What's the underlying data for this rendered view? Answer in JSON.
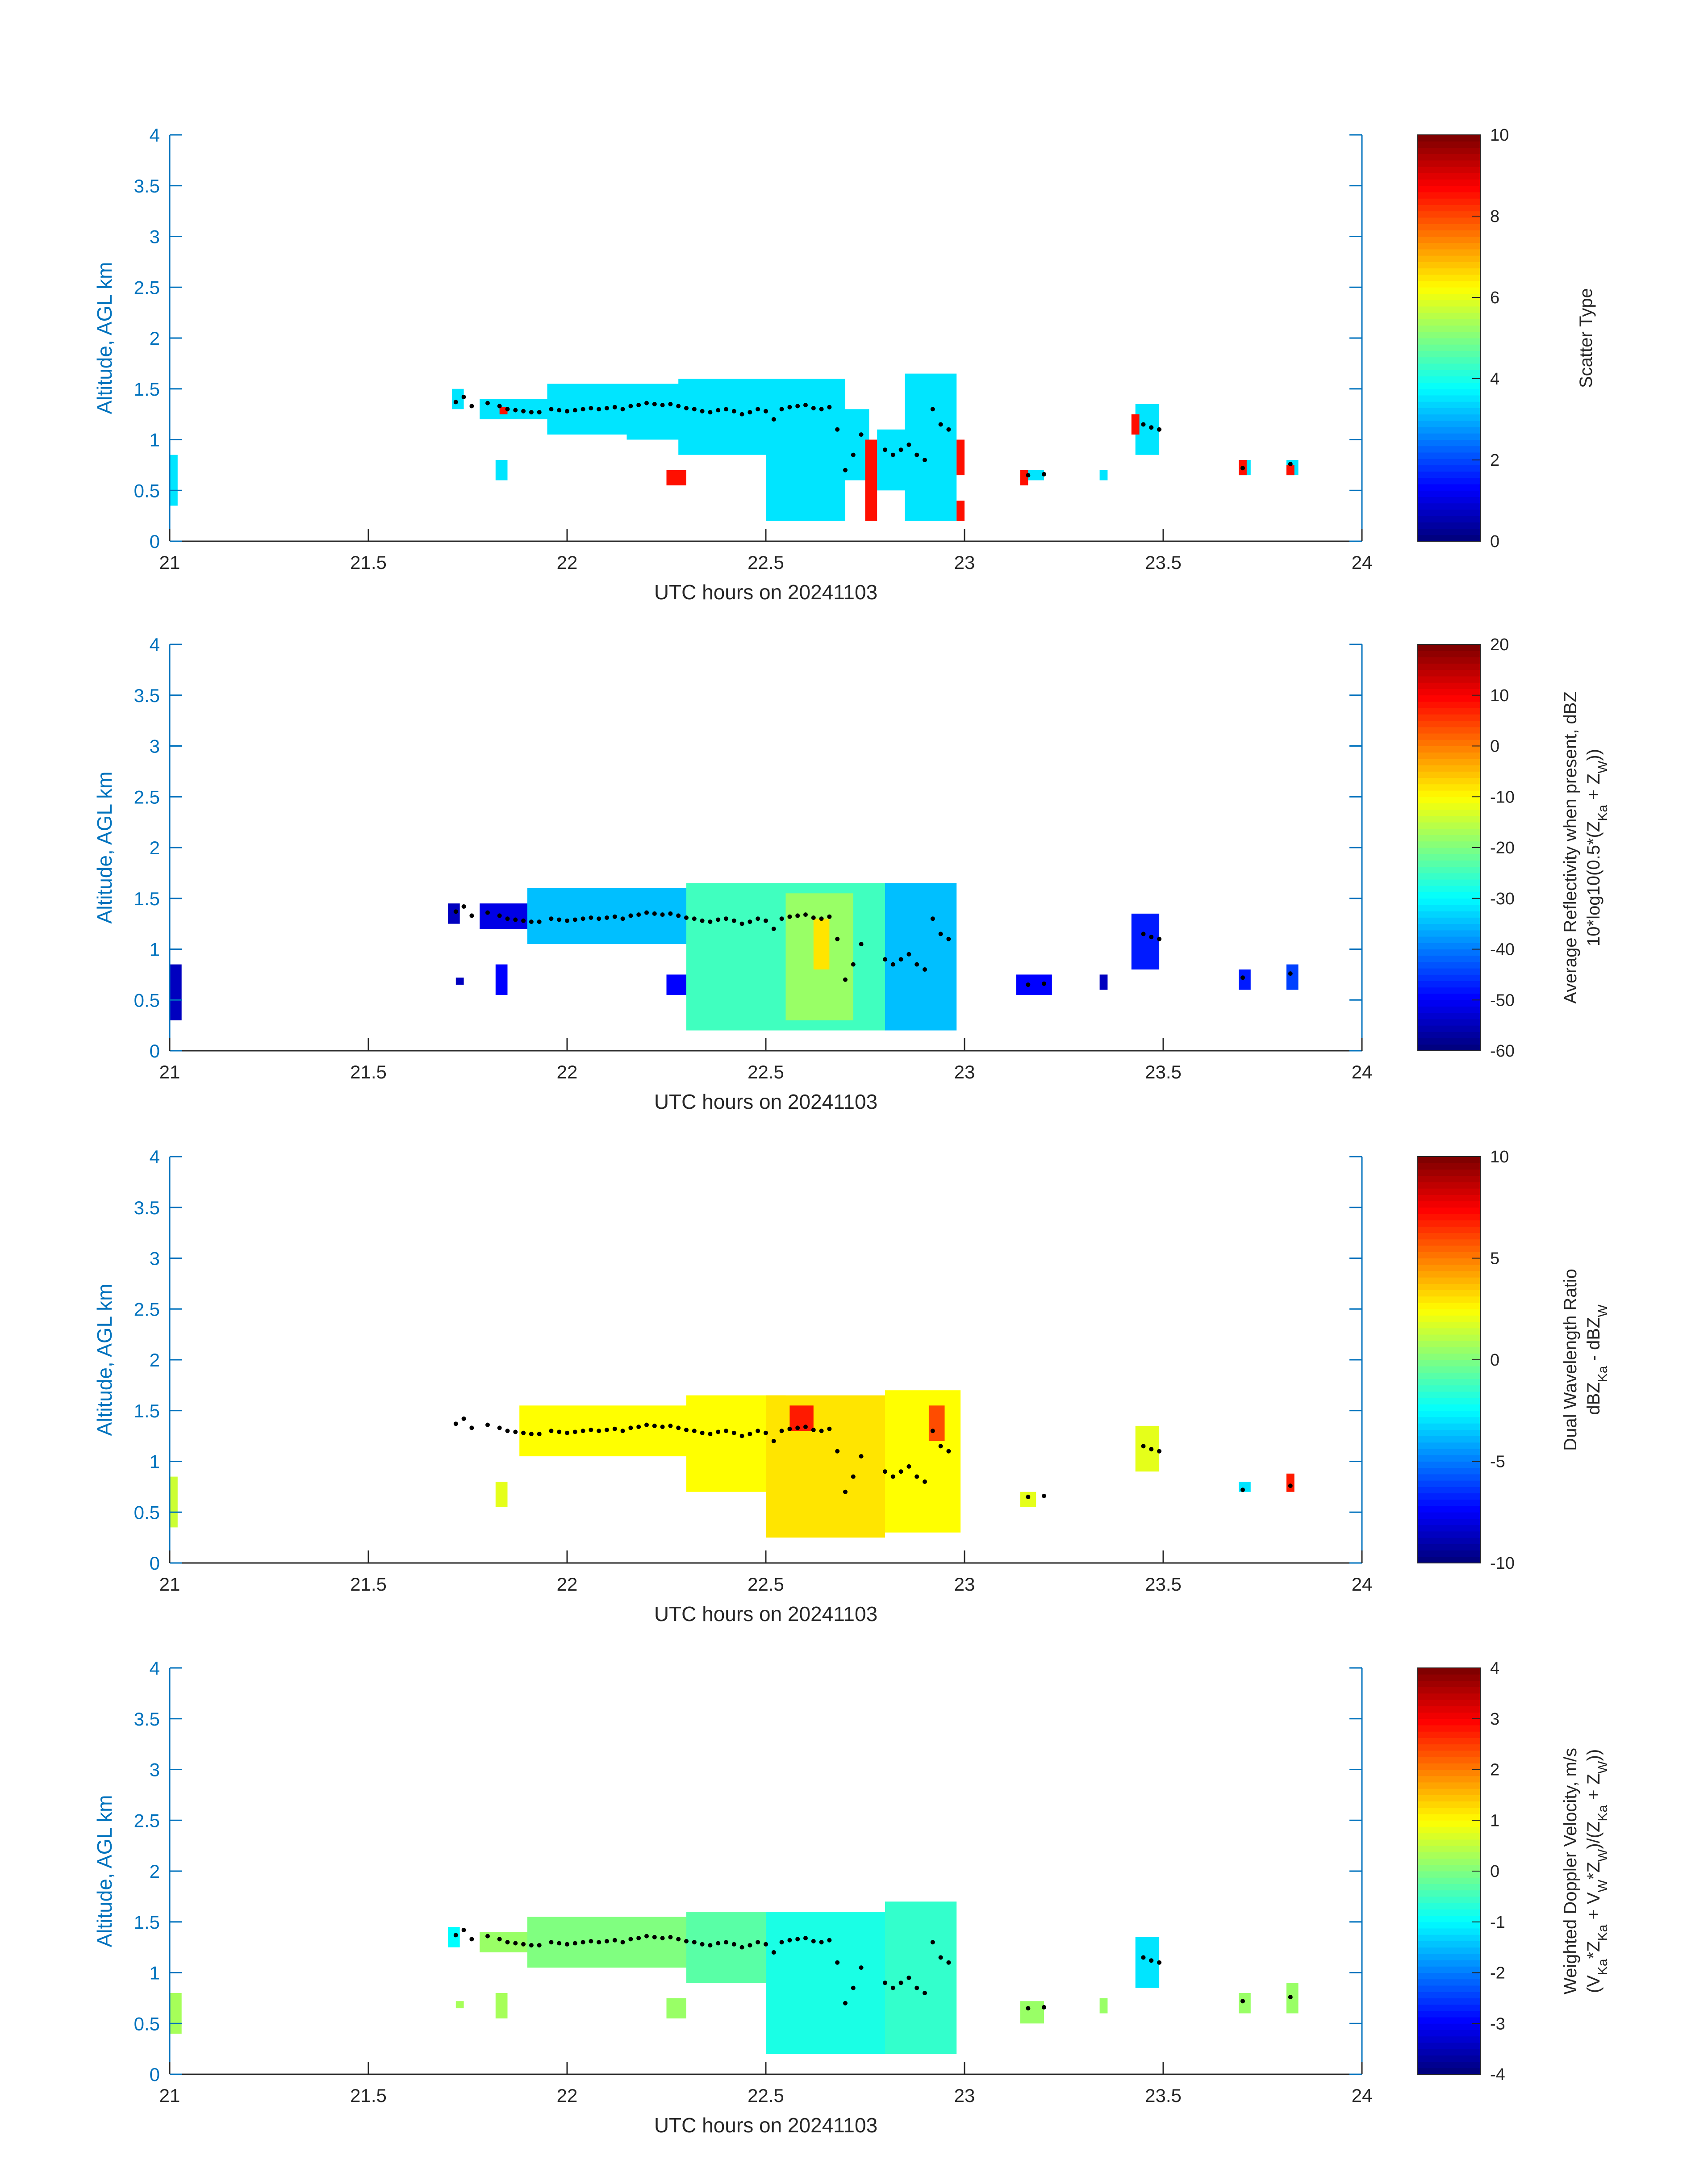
{
  "chart_data": [
    {
      "type": "heatmap",
      "xlabel": "UTC hours on 20241103",
      "ylabel": "Altitude, AGL km",
      "xlim": [
        21,
        24
      ],
      "ylim": [
        0,
        4
      ],
      "xticks": [
        "21",
        "21.5",
        "22",
        "22.5",
        "23",
        "23.5",
        "24"
      ],
      "yticks": [
        "0",
        "0.5",
        "1",
        "1.5",
        "2",
        "2.5",
        "3",
        "3.5",
        "4"
      ],
      "colorbar": {
        "label_lines": [
          "Scatter Type"
        ],
        "clim": [
          0,
          10
        ],
        "ticks": [
          "0",
          "2",
          "4",
          "6",
          "8",
          "10"
        ],
        "colormap": "jet"
      },
      "cells": [
        {
          "x": [
            21.0,
            21.02
          ],
          "y": [
            0.35,
            0.85
          ],
          "value": 3.5
        },
        {
          "x": [
            21.71,
            21.74
          ],
          "y": [
            1.3,
            1.5
          ],
          "value": 3.5
        },
        {
          "x": [
            21.78,
            21.95
          ],
          "y": [
            1.2,
            1.4
          ],
          "value": 3.5
        },
        {
          "x": [
            21.82,
            21.85
          ],
          "y": [
            0.6,
            0.8
          ],
          "value": 3.5
        },
        {
          "x": [
            21.95,
            22.15
          ],
          "y": [
            1.05,
            1.55
          ],
          "value": 3.5
        },
        {
          "x": [
            22.15,
            22.3
          ],
          "y": [
            1.0,
            1.55
          ],
          "value": 3.5
        },
        {
          "x": [
            22.28,
            22.5
          ],
          "y": [
            0.85,
            1.6
          ],
          "value": 3.5
        },
        {
          "x": [
            22.5,
            22.7
          ],
          "y": [
            0.2,
            1.6
          ],
          "value": 3.5
        },
        {
          "x": [
            22.7,
            22.76
          ],
          "y": [
            0.6,
            1.3
          ],
          "value": 3.5
        },
        {
          "x": [
            22.78,
            22.85
          ],
          "y": [
            0.5,
            1.1
          ],
          "value": 3.5
        },
        {
          "x": [
            22.85,
            22.98
          ],
          "y": [
            0.2,
            1.65
          ],
          "value": 3.5
        },
        {
          "x": [
            23.15,
            23.2
          ],
          "y": [
            0.6,
            0.7
          ],
          "value": 3.5
        },
        {
          "x": [
            23.34,
            23.36
          ],
          "y": [
            0.6,
            0.7
          ],
          "value": 3.5
        },
        {
          "x": [
            23.43,
            23.49
          ],
          "y": [
            0.85,
            1.35
          ],
          "value": 3.5
        },
        {
          "x": [
            23.69,
            23.72
          ],
          "y": [
            0.65,
            0.8
          ],
          "value": 3.5
        },
        {
          "x": [
            23.81,
            23.84
          ],
          "y": [
            0.65,
            0.8
          ],
          "value": 3.5
        },
        {
          "x": [
            21.83,
            21.85
          ],
          "y": [
            1.25,
            1.32
          ],
          "value": 8.6
        },
        {
          "x": [
            22.25,
            22.3
          ],
          "y": [
            0.55,
            0.7
          ],
          "value": 8.6
        },
        {
          "x": [
            22.75,
            22.78
          ],
          "y": [
            0.2,
            1.0
          ],
          "value": 8.6
        },
        {
          "x": [
            22.98,
            23.0
          ],
          "y": [
            0.2,
            0.4
          ],
          "value": 8.6
        },
        {
          "x": [
            22.98,
            23.0
          ],
          "y": [
            0.65,
            1.0
          ],
          "value": 8.6
        },
        {
          "x": [
            23.14,
            23.16
          ],
          "y": [
            0.55,
            0.7
          ],
          "value": 8.6
        },
        {
          "x": [
            23.42,
            23.44
          ],
          "y": [
            1.05,
            1.25
          ],
          "value": 8.6
        },
        {
          "x": [
            23.69,
            23.71
          ],
          "y": [
            0.65,
            0.8
          ],
          "value": 8.6
        },
        {
          "x": [
            23.81,
            23.83
          ],
          "y": [
            0.65,
            0.75
          ],
          "value": 8.6
        }
      ]
    },
    {
      "type": "heatmap",
      "xlabel": "UTC hours on 20241103",
      "ylabel": "Altitude, AGL km",
      "xlim": [
        21,
        24
      ],
      "ylim": [
        0,
        4
      ],
      "xticks": [
        "21",
        "21.5",
        "22",
        "22.5",
        "23",
        "23.5",
        "24"
      ],
      "yticks": [
        "0",
        "0.5",
        "1",
        "1.5",
        "2",
        "2.5",
        "3",
        "3.5",
        "4"
      ],
      "colorbar": {
        "label_lines": [
          "Average Reflectivity when present, dBZ",
          "10*log10(0.5*(ZKa + ZW))"
        ],
        "clim": [
          -60,
          20
        ],
        "ticks": [
          "-60",
          "-50",
          "-40",
          "-30",
          "-20",
          "-10",
          "0",
          "10",
          "20"
        ],
        "colormap": "jet"
      },
      "cells": [
        {
          "x": [
            21.0,
            21.03
          ],
          "y": [
            0.3,
            0.85
          ],
          "value": -55
        },
        {
          "x": [
            21.7,
            21.73
          ],
          "y": [
            1.25,
            1.45
          ],
          "value": -55
        },
        {
          "x": [
            21.72,
            21.74
          ],
          "y": [
            0.65,
            0.72
          ],
          "value": -55
        },
        {
          "x": [
            21.78,
            21.9
          ],
          "y": [
            1.2,
            1.45
          ],
          "value": -52
        },
        {
          "x": [
            21.82,
            21.85
          ],
          "y": [
            0.55,
            0.85
          ],
          "value": -50
        },
        {
          "x": [
            21.9,
            22.55
          ],
          "y": [
            1.05,
            1.6
          ],
          "value": -35
        },
        {
          "x": [
            22.25,
            22.3
          ],
          "y": [
            0.55,
            0.75
          ],
          "value": -50
        },
        {
          "x": [
            22.3,
            22.8
          ],
          "y": [
            0.2,
            1.65
          ],
          "value": -25
        },
        {
          "x": [
            22.55,
            22.72
          ],
          "y": [
            0.3,
            1.55
          ],
          "value": -18
        },
        {
          "x": [
            22.62,
            22.66
          ],
          "y": [
            0.8,
            1.3
          ],
          "value": -8
        },
        {
          "x": [
            22.8,
            22.98
          ],
          "y": [
            0.2,
            1.65
          ],
          "value": -35
        },
        {
          "x": [
            23.13,
            23.22
          ],
          "y": [
            0.55,
            0.75
          ],
          "value": -50
        },
        {
          "x": [
            23.34,
            23.36
          ],
          "y": [
            0.6,
            0.75
          ],
          "value": -55
        },
        {
          "x": [
            23.42,
            23.49
          ],
          "y": [
            0.8,
            1.35
          ],
          "value": -48
        },
        {
          "x": [
            23.69,
            23.72
          ],
          "y": [
            0.6,
            0.8
          ],
          "value": -48
        },
        {
          "x": [
            23.81,
            23.84
          ],
          "y": [
            0.6,
            0.85
          ],
          "value": -45
        }
      ]
    },
    {
      "type": "heatmap",
      "xlabel": "UTC hours on 20241103",
      "ylabel": "Altitude, AGL km",
      "xlim": [
        21,
        24
      ],
      "ylim": [
        0,
        4
      ],
      "xticks": [
        "21",
        "21.5",
        "22",
        "22.5",
        "23",
        "23.5",
        "24"
      ],
      "yticks": [
        "0",
        "0.5",
        "1",
        "1.5",
        "2",
        "2.5",
        "3",
        "3.5",
        "4"
      ],
      "colorbar": {
        "label_lines": [
          "Dual Wavelength Ratio",
          "dBZKa - dBZW"
        ],
        "clim": [
          -10,
          10
        ],
        "ticks": [
          "-10",
          "-5",
          "0",
          "5",
          "10"
        ],
        "colormap": "jet"
      },
      "cells": [
        {
          "x": [
            21.0,
            21.02
          ],
          "y": [
            0.35,
            0.85
          ],
          "value": 1.5
        },
        {
          "x": [
            21.82,
            21.85
          ],
          "y": [
            0.55,
            0.8
          ],
          "value": 2
        },
        {
          "x": [
            21.88,
            22.3
          ],
          "y": [
            1.05,
            1.55
          ],
          "value": 2.5
        },
        {
          "x": [
            22.3,
            22.55
          ],
          "y": [
            0.7,
            1.65
          ],
          "value": 2.5
        },
        {
          "x": [
            22.5,
            22.8
          ],
          "y": [
            0.25,
            1.65
          ],
          "value": 3
        },
        {
          "x": [
            22.56,
            22.62
          ],
          "y": [
            1.3,
            1.55
          ],
          "value": 7
        },
        {
          "x": [
            22.8,
            22.99
          ],
          "y": [
            0.3,
            1.7
          ],
          "value": 2.5
        },
        {
          "x": [
            22.91,
            22.95
          ],
          "y": [
            1.2,
            1.55
          ],
          "value": 6
        },
        {
          "x": [
            23.14,
            23.18
          ],
          "y": [
            0.55,
            0.7
          ],
          "value": 2
        },
        {
          "x": [
            23.43,
            23.49
          ],
          "y": [
            0.9,
            1.35
          ],
          "value": 2
        },
        {
          "x": [
            23.69,
            23.72
          ],
          "y": [
            0.7,
            0.8
          ],
          "value": -3
        },
        {
          "x": [
            23.81,
            23.83
          ],
          "y": [
            0.7,
            0.88
          ],
          "value": 7
        }
      ]
    },
    {
      "type": "heatmap",
      "xlabel": "UTC hours on 20241103",
      "ylabel": "Altitude, AGL km",
      "xlim": [
        21,
        24
      ],
      "ylim": [
        0,
        4
      ],
      "xticks": [
        "21",
        "21.5",
        "22",
        "22.5",
        "23",
        "23.5",
        "24"
      ],
      "yticks": [
        "0",
        "0.5",
        "1",
        "1.5",
        "2",
        "2.5",
        "3",
        "3.5",
        "4"
      ],
      "colorbar": {
        "label_lines": [
          "Weighted Doppler Velocity, m/s",
          "(VKa*ZKa + VW*ZW)/(ZKa + ZW))"
        ],
        "clim": [
          -4,
          4
        ],
        "ticks": [
          "-4",
          "-3",
          "-2",
          "-1",
          "0",
          "1",
          "2",
          "3",
          "4"
        ],
        "colormap": "jet"
      },
      "cells": [
        {
          "x": [
            21.0,
            21.03
          ],
          "y": [
            0.4,
            0.8
          ],
          "value": 0.3
        },
        {
          "x": [
            21.7,
            21.73
          ],
          "y": [
            1.25,
            1.45
          ],
          "value": -1
        },
        {
          "x": [
            21.72,
            21.74
          ],
          "y": [
            0.65,
            0.72
          ],
          "value": 0.3
        },
        {
          "x": [
            21.78,
            21.9
          ],
          "y": [
            1.2,
            1.4
          ],
          "value": 0.2
        },
        {
          "x": [
            21.82,
            21.85
          ],
          "y": [
            0.55,
            0.8
          ],
          "value": 0.3
        },
        {
          "x": [
            21.9,
            22.3
          ],
          "y": [
            1.05,
            1.55
          ],
          "value": 0
        },
        {
          "x": [
            22.25,
            22.3
          ],
          "y": [
            0.55,
            0.75
          ],
          "value": 0.2
        },
        {
          "x": [
            22.3,
            22.55
          ],
          "y": [
            0.9,
            1.6
          ],
          "value": -0.3
        },
        {
          "x": [
            22.5,
            22.8
          ],
          "y": [
            0.2,
            1.6
          ],
          "value": -0.8
        },
        {
          "x": [
            22.8,
            22.98
          ],
          "y": [
            0.2,
            1.7
          ],
          "value": -0.6
        },
        {
          "x": [
            23.14,
            23.2
          ],
          "y": [
            0.5,
            0.72
          ],
          "value": 0.2
        },
        {
          "x": [
            23.34,
            23.36
          ],
          "y": [
            0.6,
            0.75
          ],
          "value": 0.2
        },
        {
          "x": [
            23.43,
            23.49
          ],
          "y": [
            0.85,
            1.35
          ],
          "value": -1.2
        },
        {
          "x": [
            23.69,
            23.72
          ],
          "y": [
            0.6,
            0.8
          ],
          "value": 0.2
        },
        {
          "x": [
            23.81,
            23.84
          ],
          "y": [
            0.6,
            0.9
          ],
          "value": 0.2
        }
      ]
    }
  ],
  "cloud_base_points": [
    [
      21.72,
      1.37
    ],
    [
      21.74,
      1.42
    ],
    [
      21.76,
      1.33
    ],
    [
      21.8,
      1.36
    ],
    [
      21.83,
      1.33
    ],
    [
      21.85,
      1.3
    ],
    [
      21.87,
      1.29
    ],
    [
      21.89,
      1.28
    ],
    [
      21.91,
      1.27
    ],
    [
      21.93,
      1.27
    ],
    [
      21.96,
      1.3
    ],
    [
      21.98,
      1.29
    ],
    [
      22.0,
      1.28
    ],
    [
      22.02,
      1.29
    ],
    [
      22.04,
      1.3
    ],
    [
      22.06,
      1.31
    ],
    [
      22.08,
      1.3
    ],
    [
      22.1,
      1.31
    ],
    [
      22.12,
      1.32
    ],
    [
      22.14,
      1.3
    ],
    [
      22.16,
      1.33
    ],
    [
      22.18,
      1.34
    ],
    [
      22.2,
      1.36
    ],
    [
      22.22,
      1.35
    ],
    [
      22.24,
      1.34
    ],
    [
      22.26,
      1.35
    ],
    [
      22.28,
      1.33
    ],
    [
      22.3,
      1.31
    ],
    [
      22.32,
      1.3
    ],
    [
      22.34,
      1.28
    ],
    [
      22.36,
      1.27
    ],
    [
      22.38,
      1.29
    ],
    [
      22.4,
      1.3
    ],
    [
      22.42,
      1.28
    ],
    [
      22.44,
      1.25
    ],
    [
      22.46,
      1.27
    ],
    [
      22.48,
      1.3
    ],
    [
      22.5,
      1.28
    ],
    [
      22.52,
      1.2
    ],
    [
      22.54,
      1.3
    ],
    [
      22.56,
      1.32
    ],
    [
      22.58,
      1.33
    ],
    [
      22.6,
      1.34
    ],
    [
      22.62,
      1.31
    ],
    [
      22.64,
      1.3
    ],
    [
      22.66,
      1.32
    ],
    [
      22.68,
      1.1
    ],
    [
      22.7,
      0.7
    ],
    [
      22.72,
      0.85
    ],
    [
      22.74,
      1.05
    ],
    [
      22.8,
      0.9
    ],
    [
      22.82,
      0.85
    ],
    [
      22.84,
      0.9
    ],
    [
      22.86,
      0.95
    ],
    [
      22.88,
      0.85
    ],
    [
      22.9,
      0.8
    ],
    [
      22.92,
      1.3
    ],
    [
      22.94,
      1.15
    ],
    [
      22.96,
      1.1
    ],
    [
      23.16,
      0.65
    ],
    [
      23.2,
      0.66
    ],
    [
      23.45,
      1.15
    ],
    [
      23.47,
      1.12
    ],
    [
      23.49,
      1.1
    ],
    [
      23.7,
      0.72
    ],
    [
      23.82,
      0.76
    ]
  ]
}
